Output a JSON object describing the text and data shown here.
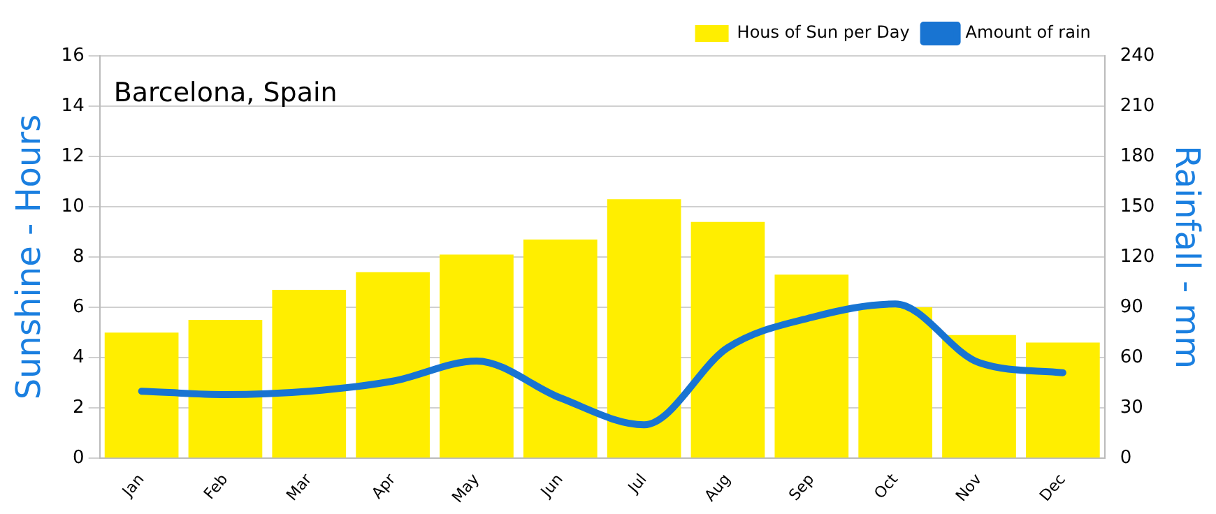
{
  "chart_data": {
    "type": "bar",
    "title": "Barcelona, Spain",
    "ylabel": "Sunshine - Hours",
    "y2label": "Rainfall - mm",
    "categories": [
      "Jan",
      "Feb",
      "Mar",
      "Apr",
      "May",
      "Jun",
      "Jul",
      "Aug",
      "Sep",
      "Oct",
      "Nov",
      "Dec"
    ],
    "series": [
      {
        "name": "Hous of Sun per Day",
        "color": "#ffee00",
        "values": [
          5.0,
          5.5,
          6.7,
          7.4,
          8.1,
          8.7,
          10.3,
          9.4,
          7.3,
          6.0,
          4.9,
          4.6
        ]
      },
      {
        "name": "Amount of rain",
        "type": "line",
        "axis": "y2",
        "color": "#1874d2",
        "values": [
          40,
          38,
          40,
          46,
          58,
          36,
          20,
          66,
          84,
          92,
          57,
          51
        ]
      }
    ],
    "ylim": [
      0,
      16
    ],
    "yticks": [
      0,
      2,
      4,
      6,
      8,
      10,
      12,
      14,
      16
    ],
    "y2lim": [
      0,
      240
    ],
    "y2ticks": [
      0,
      30,
      60,
      90,
      120,
      150,
      180,
      210,
      240
    ],
    "grid": "y",
    "legend": "top right",
    "marker": "none"
  }
}
